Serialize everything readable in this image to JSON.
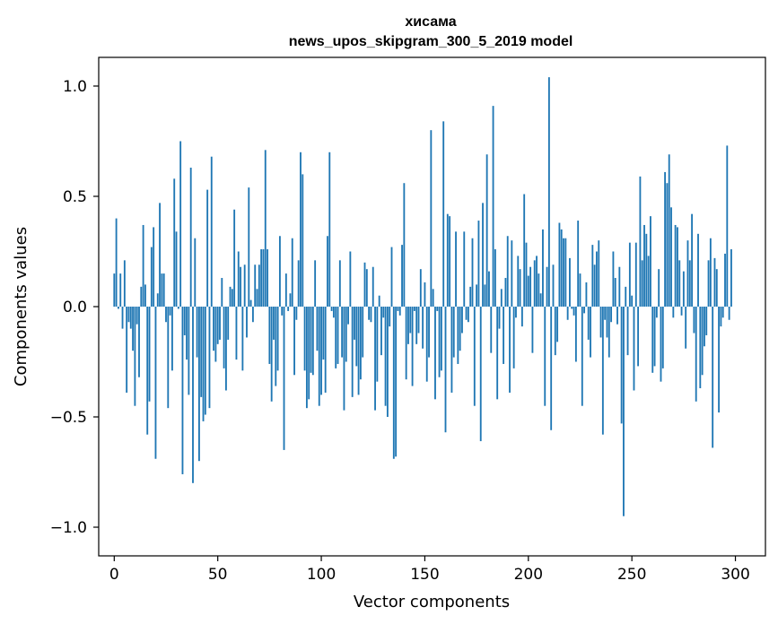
{
  "chart_data": {
    "type": "bar",
    "title": "хисама",
    "subtitle": "news_upos_skipgram_300_5_2019 model",
    "xlabel": "Vector components",
    "ylabel": "Components values",
    "xlim": [
      -7.5,
      314.5
    ],
    "ylim": [
      -1.13,
      1.13
    ],
    "xticks": [
      0,
      50,
      100,
      150,
      200,
      250,
      300
    ],
    "xtick_labels": [
      "0",
      "50",
      "100",
      "150",
      "200",
      "250",
      "300"
    ],
    "yticks": [
      -1.0,
      -0.5,
      0.0,
      0.5,
      1.0
    ],
    "ytick_labels": [
      "−1.0",
      "−0.5",
      "0.0",
      "0.5",
      "1.0"
    ],
    "bar_color": "#1f77b4",
    "grid": false,
    "values": [
      0.15,
      0.4,
      -0.01,
      0.15,
      -0.1,
      0.21,
      -0.39,
      -0.07,
      -0.1,
      -0.2,
      -0.45,
      -0.08,
      -0.32,
      0.09,
      0.37,
      0.1,
      -0.58,
      -0.43,
      0.27,
      0.36,
      -0.69,
      0.06,
      0.47,
      0.15,
      0.15,
      -0.07,
      -0.46,
      -0.04,
      -0.29,
      0.58,
      0.34,
      -0.01,
      0.75,
      -0.76,
      -0.13,
      -0.24,
      -0.4,
      0.63,
      -0.8,
      0.31,
      -0.23,
      -0.7,
      -0.41,
      -0.52,
      -0.49,
      0.53,
      -0.46,
      0.68,
      -0.2,
      -0.25,
      -0.17,
      -0.15,
      0.13,
      -0.28,
      -0.38,
      -0.15,
      0.09,
      0.08,
      0.44,
      -0.24,
      0.25,
      0.18,
      -0.29,
      0.19,
      -0.14,
      0.54,
      0.03,
      -0.07,
      0.19,
      0.08,
      0.19,
      0.26,
      0.26,
      0.71,
      0.26,
      -0.26,
      -0.43,
      -0.15,
      -0.36,
      -0.29,
      0.32,
      -0.04,
      -0.65,
      0.15,
      -0.02,
      0.06,
      0.31,
      -0.31,
      -0.06,
      0.21,
      0.7,
      0.6,
      -0.29,
      -0.46,
      -0.42,
      -0.3,
      -0.31,
      0.21,
      -0.2,
      -0.45,
      -0.4,
      -0.24,
      -0.39,
      0.32,
      0.7,
      -0.02,
      -0.05,
      -0.28,
      -0.26,
      0.21,
      -0.23,
      -0.47,
      -0.25,
      -0.08,
      0.25,
      -0.41,
      -0.15,
      -0.27,
      -0.4,
      -0.33,
      -0.23,
      0.2,
      0.17,
      -0.06,
      -0.07,
      0.18,
      -0.47,
      -0.34,
      0.05,
      -0.22,
      -0.05,
      -0.45,
      -0.5,
      -0.09,
      0.27,
      -0.69,
      -0.68,
      -0.02,
      -0.04,
      0.28,
      0.56,
      -0.33,
      -0.17,
      -0.12,
      -0.36,
      -0.02,
      -0.17,
      -0.12,
      0.17,
      -0.19,
      0.11,
      -0.34,
      -0.23,
      0.8,
      0.08,
      -0.42,
      -0.02,
      -0.32,
      -0.29,
      0.84,
      -0.57,
      0.42,
      0.41,
      -0.39,
      -0.23,
      0.34,
      -0.26,
      -0.2,
      -0.12,
      0.34,
      -0.06,
      -0.07,
      0.09,
      0.31,
      -0.45,
      0.1,
      0.39,
      -0.61,
      0.47,
      0.1,
      0.69,
      0.16,
      -0.21,
      0.91,
      0.26,
      -0.42,
      -0.1,
      0.08,
      -0.26,
      0.13,
      0.32,
      -0.39,
      0.3,
      -0.28,
      -0.05,
      0.23,
      0.17,
      -0.09,
      0.51,
      0.29,
      0.14,
      0.18,
      -0.21,
      0.21,
      0.23,
      0.15,
      0.06,
      0.35,
      -0.45,
      0.18,
      1.04,
      -0.56,
      0.19,
      -0.22,
      -0.16,
      0.38,
      0.35,
      0.31,
      0.31,
      -0.06,
      0.22,
      -0.01,
      -0.04,
      -0.25,
      0.39,
      0.15,
      -0.45,
      -0.03,
      0.11,
      -0.15,
      -0.23,
      0.28,
      0.19,
      0.25,
      0.3,
      -0.14,
      -0.58,
      -0.06,
      -0.14,
      -0.23,
      -0.07,
      0.25,
      0.13,
      -0.08,
      0.18,
      -0.53,
      -0.95,
      0.09,
      -0.22,
      0.29,
      0.05,
      -0.38,
      0.29,
      -0.27,
      0.59,
      0.21,
      0.37,
      0.33,
      0.23,
      0.41,
      -0.3,
      -0.27,
      -0.05,
      0.17,
      -0.34,
      -0.28,
      0.61,
      0.56,
      0.69,
      0.45,
      -0.05,
      0.37,
      0.36,
      0.21,
      -0.04,
      0.16,
      -0.19,
      0.3,
      0.21,
      0.42,
      -0.12,
      -0.43,
      0.33,
      -0.37,
      -0.31,
      -0.18,
      -0.13,
      0.21,
      0.31,
      -0.64,
      0.22,
      0.17,
      -0.48,
      -0.09,
      -0.05,
      0.24,
      0.73,
      -0.06,
      0.26
    ]
  }
}
